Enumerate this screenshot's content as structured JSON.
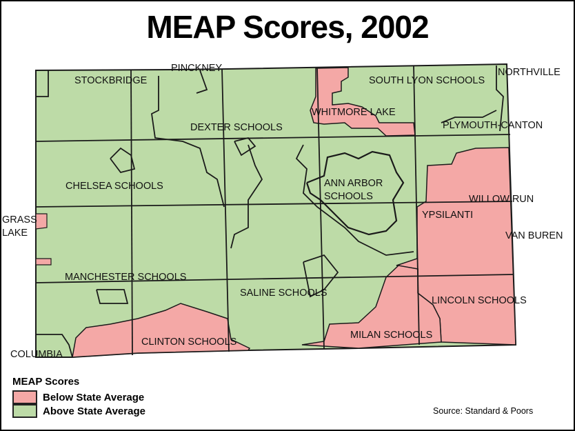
{
  "title": "MEAP Scores, 2002",
  "colors": {
    "below": "#f4a8a6",
    "above": "#bddba7",
    "border": "#1a1a1a"
  },
  "districts": [
    {
      "name": "STOCKBRIDGE",
      "status": "above"
    },
    {
      "name": "PINCKNEY",
      "status": "above"
    },
    {
      "name": "SOUTH LYON SCHOOLS",
      "status": "above"
    },
    {
      "name": "NORTHVILLE",
      "status": "above"
    },
    {
      "name": "WHITMORE LAKE",
      "status": "below"
    },
    {
      "name": "DEXTER SCHOOLS",
      "status": "above"
    },
    {
      "name": "PLYMOUTH-CANTON",
      "status": "above"
    },
    {
      "name": "CHELSEA SCHOOLS",
      "status": "above"
    },
    {
      "name": "ANN ARBOR",
      "status": "above"
    },
    {
      "name": "SCHOOLS",
      "status": "above"
    },
    {
      "name": "WILLOW RUN",
      "status": "below"
    },
    {
      "name": "GRASS",
      "status": "above"
    },
    {
      "name": "LAKE",
      "status": "above"
    },
    {
      "name": "YPSILANTI",
      "status": "below"
    },
    {
      "name": "VAN BUREN",
      "status": "below"
    },
    {
      "name": "MANCHESTER SCHOOLS",
      "status": "above"
    },
    {
      "name": "SALINE SCHOOLS",
      "status": "above"
    },
    {
      "name": "LINCOLN SCHOOLS",
      "status": "below"
    },
    {
      "name": "MILAN SCHOOLS",
      "status": "below"
    },
    {
      "name": "CLINTON SCHOOLS",
      "status": "below"
    },
    {
      "name": "COLUMBIA",
      "status": "below"
    }
  ],
  "legend": {
    "title": "MEAP Scores",
    "items": [
      {
        "label": "Below State Average",
        "color": "#f4a8a6"
      },
      {
        "label": "Above State Average",
        "color": "#bddba7"
      }
    ]
  },
  "source": "Source: Standard & Poors"
}
